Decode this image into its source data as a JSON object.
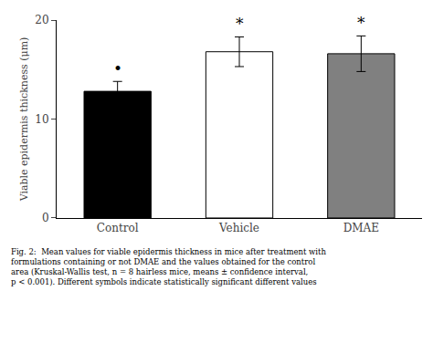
{
  "chart_data": {
    "type": "bar",
    "categories": [
      "Control",
      "Vehicle",
      "DMAE"
    ],
    "values": [
      12.8,
      16.8,
      16.6
    ],
    "errors": [
      1.0,
      1.5,
      1.8
    ],
    "colors": [
      "#000000",
      "#ffffff",
      "#808080"
    ],
    "ylabel": "Viable epidermis thickness (μm)",
    "ylim": [
      0,
      20
    ],
    "yticks": [
      0,
      10,
      20
    ],
    "grid": false,
    "annotations": [
      {
        "category": "Control",
        "text": "•"
      },
      {
        "category": "Vehicle",
        "text": "*"
      },
      {
        "category": "DMAE",
        "text": "*"
      },
      {
        "text": "Fig. 2:  Mean values for viable epidermis thickness in mice after treatment with\nformulations containing or not DMAE and the values obtained for the control\narea (Kruskal-Wallis test, n = 8 hairless mice, means ± confidence interval,\np < 0.001). Different symbols indicate statistically significant different values"
      }
    ]
  }
}
